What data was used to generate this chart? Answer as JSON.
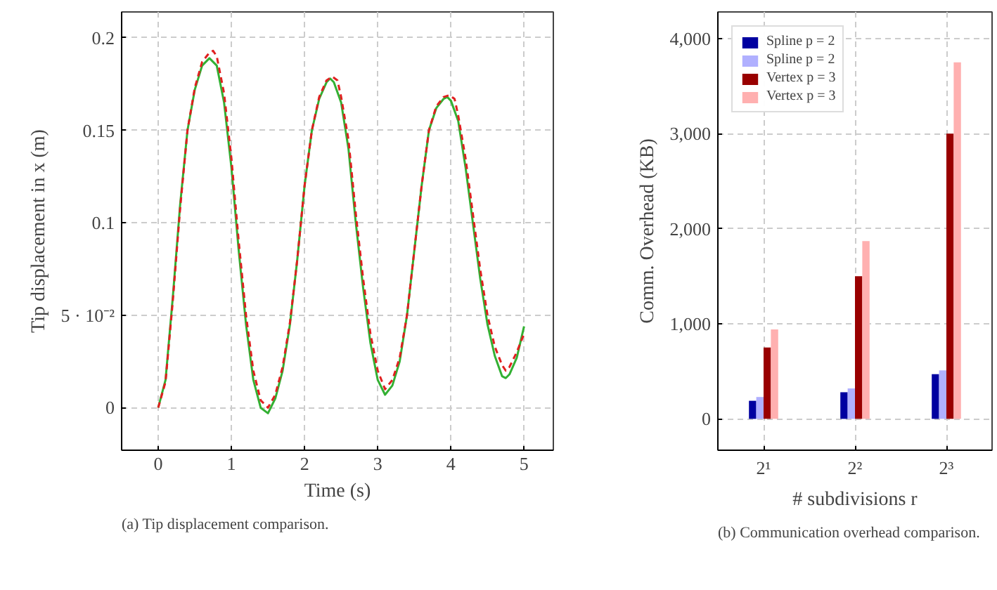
{
  "chart_data": [
    {
      "type": "line",
      "xlabel": "Time (s)",
      "ylabel": "Tip displacement in x (m)",
      "xlim": [
        -0.5,
        5.4
      ],
      "ylim": [
        -0.023,
        0.214
      ],
      "xticks": [
        0,
        1,
        2,
        3,
        4,
        5
      ],
      "yticks": [
        0,
        {
          "value": 0.05,
          "label": "5 · 10⁻²"
        },
        0.1,
        0.15,
        0.2
      ],
      "grid": true,
      "legend": false,
      "series": [
        {
          "color": "#33b033",
          "line_style": "solid",
          "x": [
            0,
            0.1,
            0.2,
            0.3,
            0.4,
            0.5,
            0.6,
            0.7,
            0.8,
            0.9,
            1.0,
            1.1,
            1.2,
            1.3,
            1.4,
            1.5,
            1.6,
            1.7,
            1.8,
            1.9,
            2.0,
            2.1,
            2.2,
            2.3,
            2.35,
            2.4,
            2.5,
            2.6,
            2.7,
            2.8,
            2.9,
            3.0,
            3.1,
            3.2,
            3.3,
            3.4,
            3.5,
            3.6,
            3.7,
            3.8,
            3.9,
            3.95,
            4.0,
            4.1,
            4.2,
            4.3,
            4.4,
            4.5,
            4.6,
            4.7,
            4.75,
            4.8,
            4.9,
            5.0
          ],
          "values": [
            0,
            0.015,
            0.06,
            0.11,
            0.15,
            0.172,
            0.185,
            0.189,
            0.185,
            0.165,
            0.13,
            0.085,
            0.045,
            0.015,
            0.0,
            -0.003,
            0.005,
            0.02,
            0.045,
            0.08,
            0.12,
            0.15,
            0.167,
            0.176,
            0.178,
            0.176,
            0.165,
            0.14,
            0.1,
            0.065,
            0.035,
            0.015,
            0.007,
            0.012,
            0.025,
            0.05,
            0.085,
            0.12,
            0.15,
            0.162,
            0.167,
            0.168,
            0.166,
            0.155,
            0.13,
            0.1,
            0.07,
            0.045,
            0.028,
            0.017,
            0.016,
            0.018,
            0.027,
            0.044
          ]
        },
        {
          "color": "#e02020",
          "line_style": "dashed",
          "x": [
            0,
            0.1,
            0.2,
            0.3,
            0.4,
            0.5,
            0.6,
            0.7,
            0.75,
            0.8,
            0.9,
            1.0,
            1.1,
            1.2,
            1.3,
            1.4,
            1.5,
            1.6,
            1.7,
            1.8,
            1.9,
            2.0,
            2.1,
            2.2,
            2.3,
            2.38,
            2.45,
            2.5,
            2.6,
            2.7,
            2.8,
            2.9,
            3.0,
            3.1,
            3.2,
            3.3,
            3.4,
            3.5,
            3.6,
            3.7,
            3.8,
            3.9,
            3.98,
            4.05,
            4.1,
            4.2,
            4.3,
            4.4,
            4.5,
            4.6,
            4.7,
            4.75,
            4.8,
            4.9,
            5.0
          ],
          "values": [
            0,
            0.014,
            0.058,
            0.108,
            0.15,
            0.173,
            0.187,
            0.192,
            0.193,
            0.19,
            0.17,
            0.135,
            0.09,
            0.05,
            0.02,
            0.004,
            0.0,
            0.007,
            0.022,
            0.046,
            0.08,
            0.12,
            0.15,
            0.168,
            0.177,
            0.179,
            0.177,
            0.168,
            0.145,
            0.105,
            0.07,
            0.04,
            0.02,
            0.01,
            0.015,
            0.027,
            0.05,
            0.085,
            0.12,
            0.15,
            0.163,
            0.168,
            0.169,
            0.167,
            0.158,
            0.135,
            0.105,
            0.075,
            0.05,
            0.033,
            0.023,
            0.02,
            0.022,
            0.03,
            0.04
          ]
        }
      ],
      "annotations": [
        "(a) Tip displacement comparison."
      ]
    },
    {
      "type": "bar",
      "categories": [
        "2¹",
        "2²",
        "2³"
      ],
      "xlabel": "# subdivisions r",
      "ylabel": "Comm. Overhead (KB)",
      "ylim": [
        -330,
        4280
      ],
      "yticks": [
        {
          "value": 0,
          "label": "0"
        },
        {
          "value": 1000,
          "label": "1,000"
        },
        {
          "value": 2000,
          "label": "2,000"
        },
        {
          "value": 3000,
          "label": "3,000"
        },
        {
          "value": 4000,
          "label": "4,000"
        }
      ],
      "grid": true,
      "legend": "top left",
      "series": [
        {
          "name": "Spline p = 2",
          "color": "#0000a0",
          "values": [
            190,
            280,
            470
          ]
        },
        {
          "name": "Spline p = 2",
          "color": "#b0b0ff",
          "values": [
            230,
            320,
            510
          ]
        },
        {
          "name": "Vertex p = 3",
          "color": "#990000",
          "values": [
            750,
            1500,
            3000
          ]
        },
        {
          "name": "Vertex p = 3",
          "color": "#ffb0b0",
          "values": [
            940,
            1870,
            3750
          ]
        }
      ],
      "annotations": [
        "(b) Communication overhead comparison."
      ]
    }
  ]
}
